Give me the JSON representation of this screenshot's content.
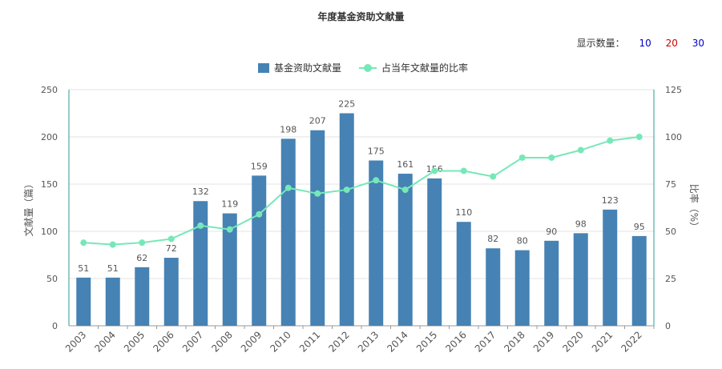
{
  "title": "年度基金资助文献量",
  "count_selector": {
    "label": "显示数量：",
    "options": [
      {
        "value": "10",
        "color": "#0000cc"
      },
      {
        "value": "20",
        "color": "#cc0000"
      },
      {
        "value": "30",
        "color": "#0000cc"
      }
    ]
  },
  "legend": {
    "bar_label": "基金资助文献量",
    "line_label": "占当年文献量的比率"
  },
  "colors": {
    "bar": "#4682b4",
    "line": "#76e8b8",
    "axis": "#2a9d8f",
    "grid": "#e3e3e3",
    "text": "#555555"
  },
  "chart_data": {
    "type": "bar+line",
    "title": "年度基金资助文献量",
    "categories": [
      "2003",
      "2004",
      "2005",
      "2006",
      "2007",
      "2008",
      "2009",
      "2010",
      "2011",
      "2012",
      "2013",
      "2014",
      "2015",
      "2016",
      "2017",
      "2018",
      "2019",
      "2020",
      "2021",
      "2022"
    ],
    "series": [
      {
        "name": "基金资助文献量",
        "type": "bar",
        "axis": "left",
        "values": [
          51,
          51,
          62,
          72,
          132,
          119,
          159,
          198,
          207,
          225,
          175,
          161,
          156,
          110,
          82,
          80,
          90,
          98,
          123,
          95
        ]
      },
      {
        "name": "占当年文献量的比率",
        "type": "line",
        "axis": "right",
        "values": [
          44,
          43,
          44,
          46,
          53,
          51,
          59,
          73,
          70,
          72,
          77,
          72,
          82,
          82,
          79,
          89,
          89,
          93,
          98,
          100
        ]
      }
    ],
    "ylabel_left": "文献量（篇）",
    "ylabel_right": "比率（%）",
    "ylim_left": [
      0,
      250
    ],
    "yticks_left": [
      0,
      50,
      100,
      150,
      200,
      250
    ],
    "ylim_right": [
      0,
      125
    ],
    "yticks_right": [
      0,
      25,
      50,
      75,
      100,
      125
    ],
    "grid": true,
    "legend_position": "top-center",
    "data_labels": true
  }
}
